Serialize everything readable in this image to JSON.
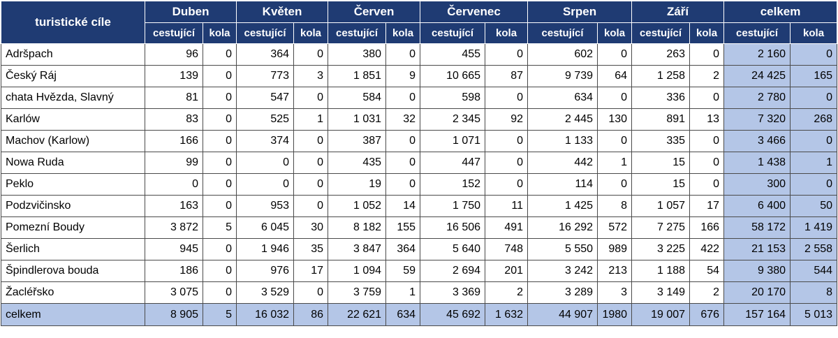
{
  "table": {
    "corner_label": "turistické cíle",
    "months": [
      "Duben",
      "Květen",
      "Červen",
      "Červenec",
      "Srpen",
      "Září",
      "celkem"
    ],
    "sub_headers": [
      "cestující",
      "kola"
    ],
    "rows": [
      {
        "name": "Adršpach",
        "values": [
          "96",
          "0",
          "364",
          "0",
          "380",
          "0",
          "455",
          "0",
          "602",
          "0",
          "263",
          "0",
          "2 160",
          "0"
        ]
      },
      {
        "name": "Český Ráj",
        "values": [
          "139",
          "0",
          "773",
          "3",
          "1 851",
          "9",
          "10 665",
          "87",
          "9 739",
          "64",
          "1 258",
          "2",
          "24 425",
          "165"
        ]
      },
      {
        "name": "chata Hvězda, Slavný",
        "values": [
          "81",
          "0",
          "547",
          "0",
          "584",
          "0",
          "598",
          "0",
          "634",
          "0",
          "336",
          "0",
          "2 780",
          "0"
        ]
      },
      {
        "name": "Karlów",
        "values": [
          "83",
          "0",
          "525",
          "1",
          "1 031",
          "32",
          "2 345",
          "92",
          "2 445",
          "130",
          "891",
          "13",
          "7 320",
          "268"
        ]
      },
      {
        "name": "Machov (Karlow)",
        "values": [
          "166",
          "0",
          "374",
          "0",
          "387",
          "0",
          "1 071",
          "0",
          "1 133",
          "0",
          "335",
          "0",
          "3 466",
          "0"
        ]
      },
      {
        "name": "Nowa Ruda",
        "values": [
          "99",
          "0",
          "0",
          "0",
          "435",
          "0",
          "447",
          "0",
          "442",
          "1",
          "15",
          "0",
          "1 438",
          "1"
        ]
      },
      {
        "name": "Peklo",
        "values": [
          "0",
          "0",
          "0",
          "0",
          "19",
          "0",
          "152",
          "0",
          "114",
          "0",
          "15",
          "0",
          "300",
          "0"
        ]
      },
      {
        "name": "Podzvičinsko",
        "values": [
          "163",
          "0",
          "953",
          "0",
          "1 052",
          "14",
          "1 750",
          "11",
          "1 425",
          "8",
          "1 057",
          "17",
          "6 400",
          "50"
        ]
      },
      {
        "name": "Pomezní Boudy",
        "values": [
          "3 872",
          "5",
          "6 045",
          "30",
          "8 182",
          "155",
          "16 506",
          "491",
          "16 292",
          "572",
          "7 275",
          "166",
          "58 172",
          "1 419"
        ]
      },
      {
        "name": "Šerlich",
        "values": [
          "945",
          "0",
          "1 946",
          "35",
          "3 847",
          "364",
          "5 640",
          "748",
          "5 550",
          "989",
          "3 225",
          "422",
          "21 153",
          "2 558"
        ]
      },
      {
        "name": "Špindlerova bouda",
        "values": [
          "186",
          "0",
          "976",
          "17",
          "1 094",
          "59",
          "2 694",
          "201",
          "3 242",
          "213",
          "1 188",
          "54",
          "9 380",
          "544"
        ]
      },
      {
        "name": "Žacléřsko",
        "values": [
          "3 075",
          "0",
          "3 529",
          "0",
          "3 759",
          "1",
          "3 369",
          "2",
          "3 289",
          "3",
          "3 149",
          "2",
          "20 170",
          "8"
        ]
      }
    ],
    "total": {
      "name": "celkem",
      "values": [
        "8 905",
        "5",
        "16 032",
        "86",
        "22 621",
        "634",
        "45 692",
        "1 632",
        "44 907",
        "1980",
        "19 007",
        "676",
        "157 164",
        "5 013"
      ]
    }
  },
  "colors": {
    "header_bg": "#1f3b73",
    "header_text": "#ffffff",
    "total_bg": "#b4c6e7",
    "border": "#4a4a4a"
  }
}
